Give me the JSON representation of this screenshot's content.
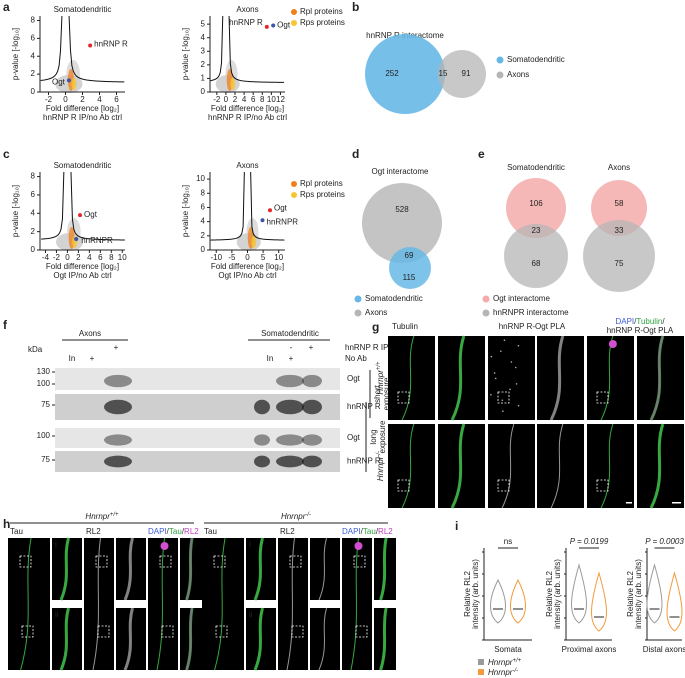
{
  "a": {
    "letter": "a",
    "plots": [
      {
        "title": "Somatodendritic",
        "ylabel": "p-value [-log₁₀]",
        "xlabel": "Fold difference [log₂]",
        "xsublabel": "hnRNP R IP/no Ab ctrl",
        "xlim": [
          -3,
          7
        ],
        "ylim": [
          0,
          8.5
        ],
        "xticks": [
          -2,
          0,
          2,
          4,
          6
        ],
        "yticks": [
          0,
          2,
          4,
          6,
          8
        ],
        "highlights": [
          {
            "label": "hnRNP R",
            "x": 2.9,
            "y": 5.2,
            "color": "#e8262b"
          },
          {
            "label": "Ogt",
            "x": 0.4,
            "y": 1.3,
            "color": "#3c55a5"
          }
        ]
      },
      {
        "title": "Axons",
        "ylabel": "p-value [-log₁₀]",
        "xlabel": "Fold difference [log₂]",
        "xsublabel": "hnRNP R IP/no Ab ctrl",
        "xlim": [
          -3.5,
          13
        ],
        "ylim": [
          0,
          5.6
        ],
        "xticks": [
          -2,
          0,
          2,
          4,
          6,
          8,
          10,
          12
        ],
        "yticks": [
          0,
          1,
          2,
          3,
          4,
          5
        ],
        "highlights": [
          {
            "label": "hnRNP R",
            "x": 9.0,
            "y": 4.8,
            "color": "#e8262b"
          },
          {
            "label": "Ogt",
            "x": 10.4,
            "y": 4.9,
            "color": "#3c55a5"
          }
        ]
      }
    ],
    "legend": [
      {
        "name": "Rpl proteins",
        "color": "#f07f1b"
      },
      {
        "name": "Rps proteins",
        "color": "#f7c531"
      }
    ]
  },
  "b": {
    "letter": "b",
    "title": "hnRNP R interactome",
    "left": 252,
    "overlap": 15,
    "right": 91,
    "legend": [
      {
        "name": "Somatodendritic",
        "color": "#67b8e6"
      },
      {
        "name": "Axons",
        "color": "#b5b5b5"
      }
    ]
  },
  "c": {
    "letter": "c",
    "plots": [
      {
        "title": "Somatodendritic",
        "ylabel": "p-value [-log₁₀]",
        "xlabel": "Fold difference [log₂]",
        "xsublabel": "Ogt IP/no Ab ctrl",
        "xlim": [
          -5,
          10.5
        ],
        "ylim": [
          0,
          8.5
        ],
        "xticks": [
          -4,
          -2,
          0,
          2,
          4,
          6,
          8,
          10
        ],
        "yticks": [
          0,
          2,
          4,
          6,
          8
        ],
        "highlights": [
          {
            "label": "Ogt",
            "x": 2.3,
            "y": 3.8,
            "color": "#e8262b"
          },
          {
            "label": "hnRNPR",
            "x": 1.6,
            "y": 1.2,
            "color": "#3c55a5"
          }
        ]
      },
      {
        "title": "Axons",
        "ylabel": "p-value [-log₁₀]",
        "xlabel": "Fold difference [log₂]",
        "xsublabel": "Ogt IP/no Ab ctrl",
        "xlim": [
          -12,
          12
        ],
        "ylim": [
          0,
          11
        ],
        "xticks": [
          -10,
          -5,
          0,
          5,
          10
        ],
        "yticks": [
          0,
          2,
          4,
          6,
          8,
          10
        ],
        "highlights": [
          {
            "label": "Ogt",
            "x": 7.2,
            "y": 5.6,
            "color": "#e8262b"
          },
          {
            "label": "hnRNPR",
            "x": 4.8,
            "y": 4.2,
            "color": "#3c55a5"
          }
        ]
      }
    ],
    "legend": [
      {
        "name": "Rpl proteins",
        "color": "#f07f1b"
      },
      {
        "name": "Rps proteins",
        "color": "#f7c531"
      }
    ]
  },
  "d": {
    "letter": "d",
    "title": "Ogt interactome",
    "top": 528,
    "overlap": 69,
    "bottom": 115,
    "legend": [
      {
        "name": "Somatodendritic",
        "color": "#67b8e6"
      },
      {
        "name": "Axons",
        "color": "#b5b5b5"
      }
    ]
  },
  "e": {
    "letter": "e",
    "venns": [
      {
        "title": "Somatodendritic",
        "top": 106,
        "overlap": 23,
        "bottom": 68
      },
      {
        "title": "Axons",
        "top": 58,
        "overlap": 33,
        "bottom": 75
      }
    ],
    "legend": [
      {
        "name": "Ogt interactome",
        "color": "#f4abaa"
      },
      {
        "name": "hnRNPR interactome",
        "color": "#b5b5b5"
      }
    ]
  },
  "f": {
    "letter": "f",
    "groups": [
      "Axons",
      "Somatodendritic"
    ],
    "kda": "kDa",
    "conditions": [
      "hnRNP R IP",
      "No Ab"
    ],
    "ip_row": [
      "+",
      "-",
      "+"
    ],
    "noab_row": [
      "In",
      "+",
      "In",
      "+"
    ],
    "mw": [
      130,
      100,
      75,
      100,
      75
    ],
    "blots": [
      "Ogt",
      "hnRNP R",
      "Ogt",
      "hnRNP R"
    ],
    "exposures": [
      [
        "short",
        "exposure"
      ],
      [
        "long",
        "exposure"
      ]
    ]
  },
  "g": {
    "letter": "g",
    "channels": [
      "Tubulin",
      "hnRNP R-Ogt PLA"
    ],
    "merge": [
      {
        "text": "DAPI",
        "color": "#3b5bdb"
      },
      {
        "text": "/",
        "color": "#333333"
      },
      {
        "text": "Tubulin",
        "color": "#2ea043"
      },
      {
        "text": "/",
        "color": "#333333"
      }
    ],
    "merge2": {
      "text": "hnRNP R-Ogt PLA",
      "color": "#c23fc2"
    },
    "genotypes": [
      {
        "gene": "Hnrnpr",
        "sup": "+/+"
      },
      {
        "gene": "Hnrnpr",
        "sup": "-/-"
      }
    ]
  },
  "h": {
    "letter": "h",
    "genotypes": [
      {
        "gene": "Hnrnpr",
        "sup": "+/+"
      },
      {
        "gene": "Hnrnpr",
        "sup": "-/-"
      }
    ],
    "channels": [
      {
        "text": "Tau",
        "color": "#2ea043"
      },
      {
        "text": "RL2",
        "color": "#777777"
      }
    ],
    "merge": [
      {
        "text": "DAPI",
        "color": "#3b5bdb"
      },
      {
        "text": "/",
        "color": "#333333"
      },
      {
        "text": "Tau",
        "color": "#2ea043"
      },
      {
        "text": "/",
        "color": "#333333"
      },
      {
        "text": "RL2",
        "color": "#c23fc2"
      }
    ],
    "insets": [
      "i",
      "ii"
    ]
  },
  "i": {
    "letter": "i",
    "ylabel": [
      "Relative RL2",
      "intensity (arb. units)"
    ],
    "plots": [
      {
        "xlabel": "Somata",
        "stat": "ns"
      },
      {
        "xlabel": "Proximal axons",
        "stat": "P = 0.0199"
      },
      {
        "xlabel": "Distal axons",
        "stat": "P = 0.0003"
      }
    ],
    "legend": [
      {
        "gene": "Hnrnpr",
        "sup": "+/+",
        "color": "#9a9a9a"
      },
      {
        "gene": "Hnrnpr",
        "sup": "-/-",
        "color": "#f39a3c"
      }
    ]
  }
}
